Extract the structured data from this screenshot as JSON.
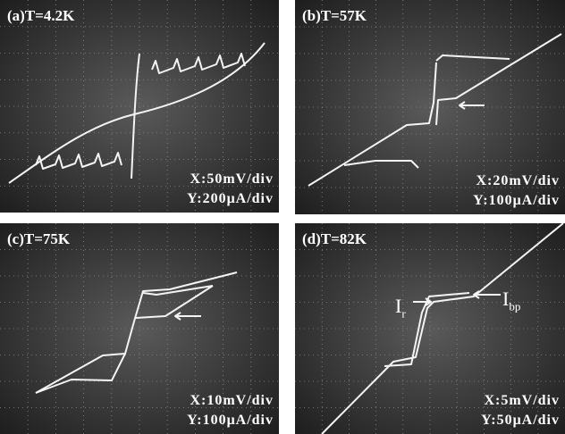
{
  "panels": [
    {
      "label": "(a)T=4.2K",
      "xscale": "X:50mV/div",
      "yscale": "Y:200μA/div"
    },
    {
      "label": "(b)T=57K",
      "xscale": "X:20mV/div",
      "yscale": "Y:100μA/div"
    },
    {
      "label": "(c)T=75K",
      "xscale": "X:10mV/div",
      "yscale": "Y:100μA/div"
    },
    {
      "label": "(d)T=82K",
      "xscale": "X:5mV/div",
      "yscale": "Y:50μA/div",
      "annotations": [
        {
          "main": "I",
          "sub": "r"
        },
        {
          "main": "I",
          "sub": "bp"
        }
      ]
    }
  ]
}
